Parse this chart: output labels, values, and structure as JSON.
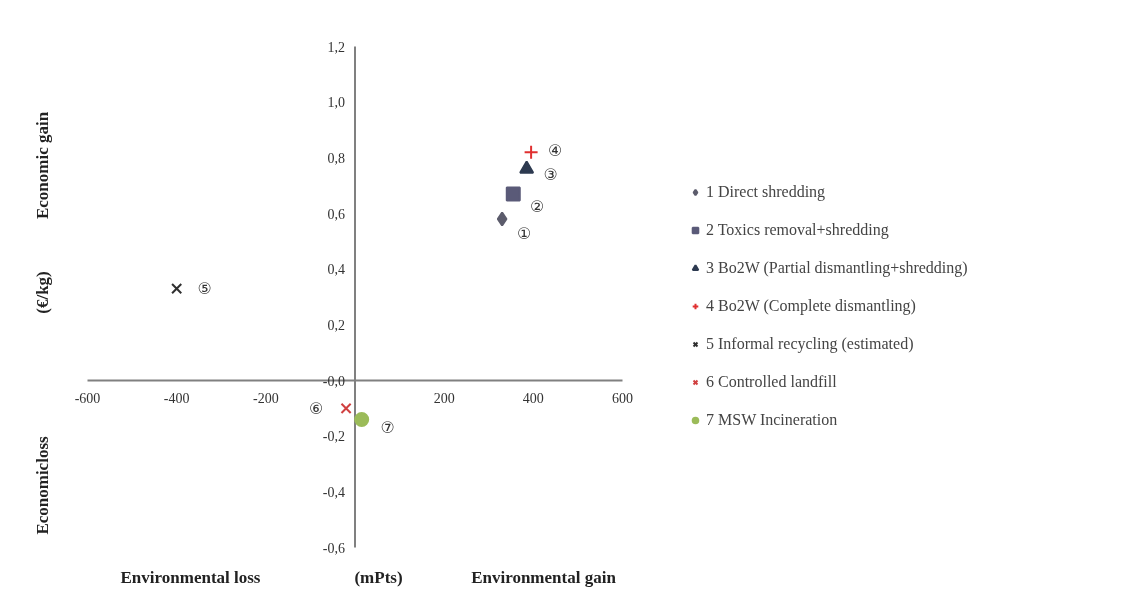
{
  "chart_data": {
    "type": "scatter",
    "xlabel": "(mPts)",
    "ylabel": "(€/kg)",
    "xlim": [
      -600,
      600
    ],
    "ylim": [
      -0.6,
      1.2
    ],
    "xticks": [
      -600,
      -400,
      -200,
      200,
      400,
      600
    ],
    "yticks": [
      {
        "value": -0.6,
        "label": "-0,6"
      },
      {
        "value": -0.4,
        "label": "-0,4"
      },
      {
        "value": -0.2,
        "label": "-0,2"
      },
      {
        "value": 0,
        "label": "-0,0"
      },
      {
        "value": 0.2,
        "label": "0,2"
      },
      {
        "value": 0.4,
        "label": "0,4"
      },
      {
        "value": 0.6,
        "label": "0,6"
      },
      {
        "value": 0.8,
        "label": "0,8"
      },
      {
        "value": 1.0,
        "label": "1,0"
      },
      {
        "value": 1.2,
        "label": "1,2"
      }
    ],
    "grid": false,
    "legend": "right",
    "series": [
      {
        "name": "1 Direct shredding",
        "color": "#5c5c6c",
        "marker": "diamond",
        "x": [
          330
        ],
        "values": [
          0.58
        ]
      },
      {
        "name": "2 Toxics removal+shredding",
        "color": "#5a5a78",
        "marker": "square",
        "x": [
          355
        ],
        "values": [
          0.67
        ]
      },
      {
        "name": "3 Bo2W (Partial dismantling+shredding)",
        "color": "#2d3a50",
        "marker": "triangle",
        "x": [
          385
        ],
        "values": [
          0.76
        ]
      },
      {
        "name": "4 Bo2W (Complete dismantling)",
        "color": "#e03030",
        "marker": "cross",
        "x": [
          395
        ],
        "values": [
          0.82
        ]
      },
      {
        "name": "5 Informal recycling (estimated)",
        "color": "#303030",
        "marker": "x",
        "x": [
          -400
        ],
        "values": [
          0.33
        ]
      },
      {
        "name": "6 Controlled landfill",
        "color": "#d04040",
        "marker": "x",
        "x": [
          -20
        ],
        "values": [
          -0.1
        ]
      },
      {
        "name": "7 MSW Incineration",
        "color": "#9bbb59",
        "marker": "circle",
        "x": [
          15
        ],
        "values": [
          -0.14
        ]
      }
    ],
    "annotations": [
      "Environmental loss",
      "Environmental gain",
      "Economic gain",
      "Economicloss",
      "①",
      "②",
      "③",
      "④",
      "⑤",
      "⑥",
      "⑦"
    ]
  }
}
